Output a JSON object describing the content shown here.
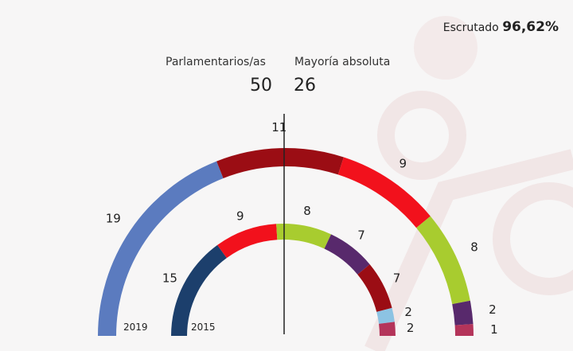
{
  "header": {
    "scrutiny_label": "Escrutado",
    "scrutiny_value": "96,62%",
    "seats_label": "Parlamentarios/as",
    "seats_value": "50",
    "majority_label": "Mayoría absoluta",
    "majority_value": "26"
  },
  "chart_data": {
    "type": "pie",
    "subtype": "parliament-semicircle",
    "total_seats": 50,
    "series": [
      {
        "name": "2019",
        "label": "2019",
        "ring": "outer",
        "values": [
          19,
          11,
          9,
          8,
          2,
          1
        ],
        "colors": [
          "#5b7bbf",
          "#9b0d14",
          "#f2111c",
          "#a8cc2f",
          "#58296c",
          "#b4345a"
        ]
      },
      {
        "name": "2015",
        "label": "2015",
        "ring": "inner",
        "values": [
          15,
          9,
          8,
          7,
          7,
          2,
          2
        ],
        "colors": [
          "#1c3f6c",
          "#f2111c",
          "#a8cc2f",
          "#58296c",
          "#9b0d14",
          "#8cc3e3",
          "#b4345a"
        ]
      }
    ]
  }
}
